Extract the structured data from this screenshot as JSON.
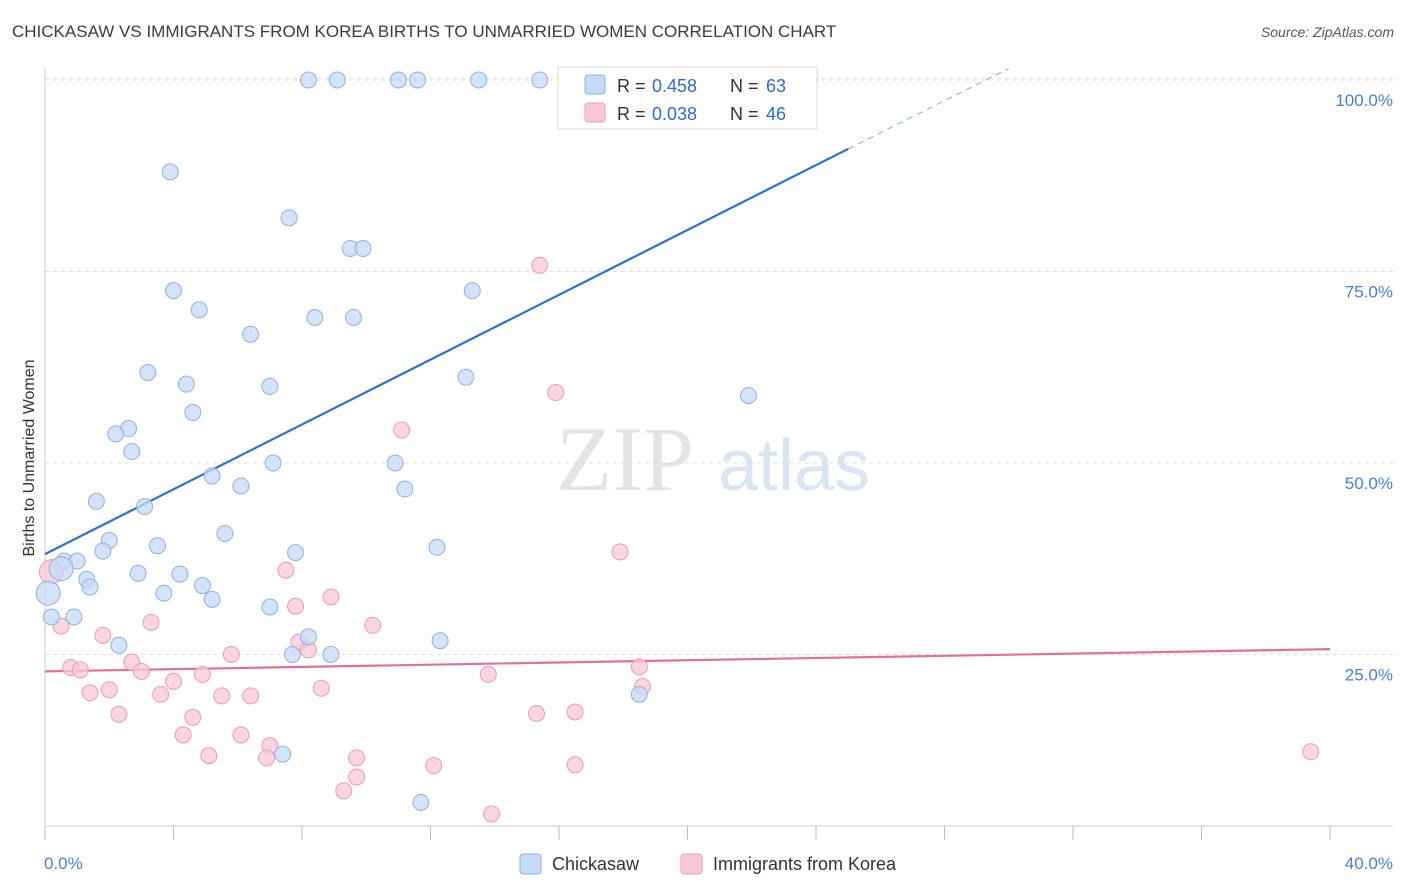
{
  "title": "CHICKASAW VS IMMIGRANTS FROM KOREA BIRTHS TO UNMARRIED WOMEN CORRELATION CHART",
  "source": "Source: ZipAtlas.com",
  "watermark": {
    "zip": "ZIP",
    "atlas": "atlas"
  },
  "colors": {
    "blue_fill": "#c6d9f5",
    "blue_stroke": "#8fb1e3",
    "blue_line": "#2f6fd0",
    "pink_fill": "#f9c8d6",
    "pink_stroke": "#ee9bb5",
    "pink_line": "#e46f96",
    "grid": "#dddddd",
    "axis_label": "#4a7fcf"
  },
  "chart_data": {
    "type": "scatter",
    "ylabel": "Births to Unmarried Women",
    "xlim": [
      0,
      40
    ],
    "ylim": [
      0,
      105
    ],
    "x_tick_labels": [
      "0.0%",
      "40.0%"
    ],
    "y_ticks": [
      25,
      50,
      75,
      100
    ],
    "y_tick_labels": [
      "25.0%",
      "50.0%",
      "75.0%",
      "100.0%"
    ],
    "grid": true,
    "legend_placement": "top-center",
    "stats_legend": [
      {
        "r_label": "R =",
        "r_value": "0.458",
        "n_label": "N =",
        "n_value": "63"
      },
      {
        "r_label": "R =",
        "r_value": "0.038",
        "n_label": "N =",
        "n_value": "46"
      }
    ],
    "series": [
      {
        "name": "Chickasaw",
        "color": "blue",
        "trend": {
          "x": [
            0,
            25
          ],
          "y": [
            38.1,
            91.0
          ],
          "dashed_to": [
            30,
            101.5
          ]
        },
        "points": [
          [
            8.2,
            100
          ],
          [
            9.1,
            100
          ],
          [
            11.0,
            100
          ],
          [
            11.6,
            100
          ],
          [
            13.5,
            100
          ],
          [
            15.4,
            100
          ],
          [
            16.9,
            100
          ],
          [
            21.8,
            100
          ],
          [
            23.8,
            100
          ],
          [
            3.9,
            88.0
          ],
          [
            7.6,
            82.0
          ],
          [
            9.5,
            78.0
          ],
          [
            9.9,
            78.0
          ],
          [
            4.0,
            72.5
          ],
          [
            4.8,
            70.0
          ],
          [
            8.4,
            69.0
          ],
          [
            9.6,
            69.0
          ],
          [
            13.3,
            72.5
          ],
          [
            6.4,
            66.8
          ],
          [
            3.2,
            61.8
          ],
          [
            4.4,
            60.3
          ],
          [
            7.0,
            60.0
          ],
          [
            13.1,
            61.2
          ],
          [
            21.9,
            58.8
          ],
          [
            4.6,
            56.6
          ],
          [
            2.6,
            54.5
          ],
          [
            2.2,
            53.8
          ],
          [
            2.7,
            51.5
          ],
          [
            7.1,
            50.0
          ],
          [
            10.9,
            50.0
          ],
          [
            5.2,
            48.3
          ],
          [
            6.1,
            47.0
          ],
          [
            11.2,
            46.6
          ],
          [
            1.6,
            45.0
          ],
          [
            3.1,
            44.3
          ],
          [
            5.6,
            40.8
          ],
          [
            2.0,
            39.9
          ],
          [
            3.5,
            39.2
          ],
          [
            12.2,
            39.0
          ],
          [
            1.8,
            38.5
          ],
          [
            7.8,
            38.3
          ],
          [
            0.6,
            37.2
          ],
          [
            1.0,
            37.2
          ],
          [
            0.5,
            36.2
          ],
          [
            2.9,
            35.6
          ],
          [
            4.2,
            35.5
          ],
          [
            1.3,
            34.8
          ],
          [
            1.4,
            33.8
          ],
          [
            4.9,
            34.0
          ],
          [
            0.1,
            33.0
          ],
          [
            3.7,
            33.0
          ],
          [
            5.2,
            32.2
          ],
          [
            7.0,
            31.2
          ],
          [
            0.2,
            29.9
          ],
          [
            0.9,
            29.9
          ],
          [
            8.2,
            27.3
          ],
          [
            12.3,
            26.8
          ],
          [
            2.3,
            26.2
          ],
          [
            7.7,
            25.0
          ],
          [
            8.9,
            25.0
          ],
          [
            18.5,
            19.8
          ],
          [
            7.4,
            12.0
          ],
          [
            11.7,
            5.7
          ]
        ]
      },
      {
        "name": "Immigrants from Korea",
        "color": "pink",
        "trend": {
          "x": [
            0,
            40
          ],
          "y": [
            22.8,
            25.7
          ]
        },
        "points": [
          [
            15.4,
            75.8
          ],
          [
            15.9,
            59.2
          ],
          [
            11.1,
            54.3
          ],
          [
            17.9,
            38.4
          ],
          [
            0.2,
            35.8
          ],
          [
            7.5,
            36.0
          ],
          [
            8.9,
            32.5
          ],
          [
            7.8,
            31.3
          ],
          [
            0.5,
            28.7
          ],
          [
            3.3,
            29.2
          ],
          [
            10.2,
            28.8
          ],
          [
            1.8,
            27.5
          ],
          [
            7.9,
            26.6
          ],
          [
            8.2,
            25.6
          ],
          [
            5.8,
            25.0
          ],
          [
            2.7,
            24.0
          ],
          [
            0.8,
            23.3
          ],
          [
            1.1,
            23.0
          ],
          [
            3.0,
            22.8
          ],
          [
            4.9,
            22.4
          ],
          [
            13.8,
            22.4
          ],
          [
            18.5,
            23.4
          ],
          [
            4.0,
            21.5
          ],
          [
            2.0,
            20.4
          ],
          [
            8.6,
            20.6
          ],
          [
            18.6,
            20.8
          ],
          [
            1.4,
            20.0
          ],
          [
            3.6,
            19.8
          ],
          [
            5.5,
            19.6
          ],
          [
            6.4,
            19.6
          ],
          [
            2.3,
            17.2
          ],
          [
            4.6,
            16.8
          ],
          [
            15.3,
            17.3
          ],
          [
            16.5,
            17.5
          ],
          [
            4.3,
            14.5
          ],
          [
            6.1,
            14.5
          ],
          [
            7.0,
            13.1
          ],
          [
            6.9,
            11.5
          ],
          [
            9.7,
            11.5
          ],
          [
            5.1,
            11.8
          ],
          [
            39.4,
            12.3
          ],
          [
            12.1,
            10.5
          ],
          [
            16.5,
            10.6
          ],
          [
            9.7,
            9.0
          ],
          [
            9.3,
            7.2
          ],
          [
            13.9,
            4.2
          ]
        ]
      }
    ]
  }
}
